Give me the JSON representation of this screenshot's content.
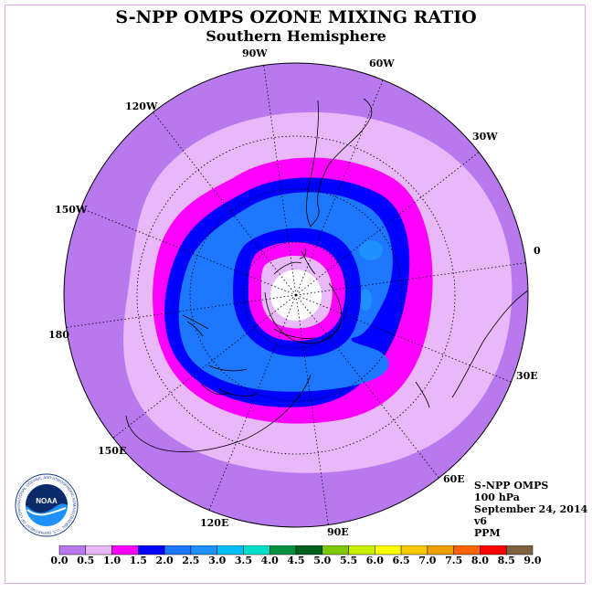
{
  "title": "S-NPP OMPS OZONE MIXING RATIO",
  "subtitle": "Southern Hemisphere",
  "lon_labels": {
    "w90": "90W",
    "w60": "60W",
    "w30": "30W",
    "w120": "120W",
    "w150": "150W",
    "e0": "0",
    "d180": "180",
    "e30": "30E",
    "e60": "60E",
    "e90": "90E",
    "e120": "120E",
    "e150": "150E"
  },
  "info": {
    "instrument": "S-NPP OMPS",
    "level": "100 hPa",
    "date": "September 24, 2014",
    "version": "v6",
    "units": "PPM"
  },
  "logo": {
    "text": "NOAA",
    "ring_text": "NATIONAL OCEANIC AND ATMOSPHERIC ADMINISTRATION · U.S. DEPARTMENT OF COMMERCE"
  },
  "colorbar": {
    "labels": [
      "0.0",
      "0.5",
      "1.0",
      "1.5",
      "2.0",
      "2.5",
      "3.0",
      "3.5",
      "4.0",
      "4.5",
      "5.0",
      "5.5",
      "6.0",
      "6.5",
      "7.0",
      "7.5",
      "8.0",
      "8.5",
      "9.0"
    ],
    "colors": [
      "#b878ee",
      "#e8b8f8",
      "#ff00ff",
      "#0000ff",
      "#1e78ff",
      "#1e90ff",
      "#00bfff",
      "#00e0c8",
      "#009040",
      "#006020",
      "#80c800",
      "#c8f000",
      "#ffff00",
      "#f8c800",
      "#f0a000",
      "#ff6400",
      "#ff0000",
      "#806040"
    ]
  },
  "map_colors": {
    "band_0_0_5": "#b878ee",
    "band_0_5_1_0": "#e8b8f8",
    "band_1_0_1_5": "#ff00ff",
    "band_1_5_2_0": "#0000ff",
    "band_2_0_2_5": "#1e78ff",
    "band_2_5_3_0": "#1e90ff",
    "pole_no_data": "#ffffff"
  }
}
